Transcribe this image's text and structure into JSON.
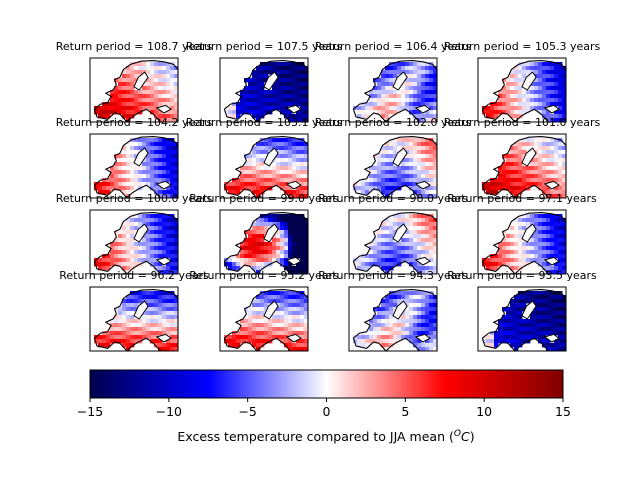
{
  "chart_data": {
    "type": "heatmap",
    "panels": [
      {
        "title": "Return period = 108.7 years",
        "pattern": "warm-southwest"
      },
      {
        "title": "Return period = 107.5 years",
        "pattern": "cold-east"
      },
      {
        "title": "Return period = 106.4 years",
        "pattern": "mixed-central"
      },
      {
        "title": "Return period = 105.3 years",
        "pattern": "warm-west-cold-east"
      },
      {
        "title": "Return period = 104.2 years",
        "pattern": "warm-west-cold-east"
      },
      {
        "title": "Return period = 103.1 years",
        "pattern": "warm-south"
      },
      {
        "title": "Return period = 102.0 years",
        "pattern": "warm-north"
      },
      {
        "title": "Return period = 101.0 years",
        "pattern": "warm-southwest"
      },
      {
        "title": "Return period = 100.0 years",
        "pattern": "warm-west-cold-east"
      },
      {
        "title": "Return period = 99.0 years",
        "pattern": "warm-central"
      },
      {
        "title": "Return period = 98.0 years",
        "pattern": "warm-north"
      },
      {
        "title": "Return period = 97.1 years",
        "pattern": "warm-west-cold-east"
      },
      {
        "title": "Return period = 96.2 years",
        "pattern": "cold-north-warm-south"
      },
      {
        "title": "Return period = 95.2 years",
        "pattern": "warm-south"
      },
      {
        "title": "Return period = 94.3 years",
        "pattern": "mixed-central"
      },
      {
        "title": "Return period = 93.5 years",
        "pattern": "cold-east"
      }
    ],
    "colorbar": {
      "colormap": "seismic",
      "range": [
        -15,
        15
      ],
      "ticks": [
        "−15",
        "−10",
        "−5",
        "0",
        "5",
        "10",
        "15"
      ],
      "label": "Excess temperature compared to JJA mean (",
      "label_unit": "O",
      "label_unit_sup": "C",
      "label_end": ")"
    },
    "colors": {
      "cold_max": "#00004c",
      "cold": "#0000ff",
      "neutral": "#ffffff",
      "warm": "#ff0000",
      "warm_max": "#800000",
      "coastline": "#000000"
    }
  }
}
